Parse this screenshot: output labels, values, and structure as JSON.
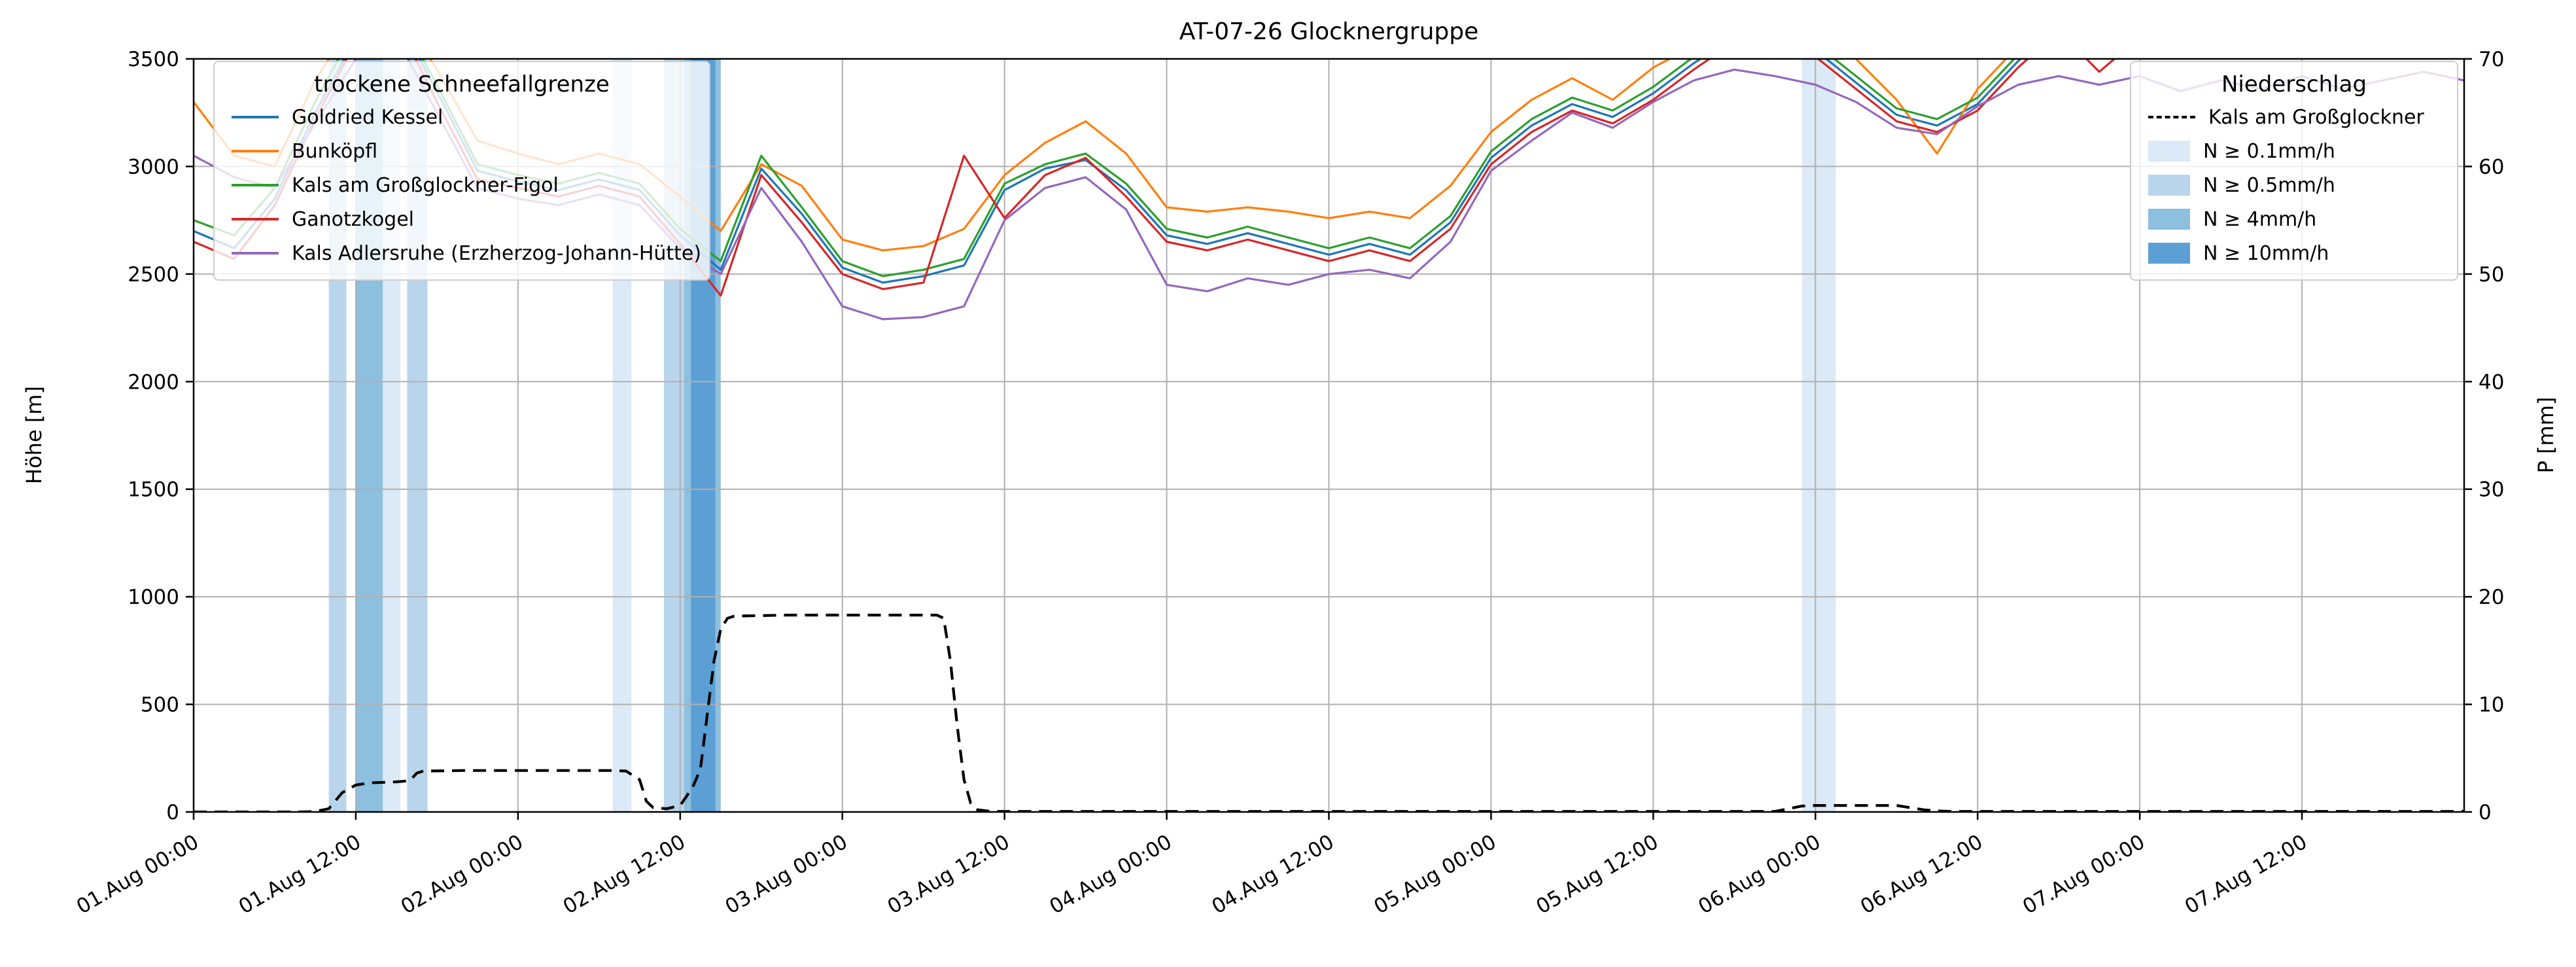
{
  "title": "AT-07-26 Glocknergruppe",
  "ylabel_left": "Höhe [m]",
  "ylabel_right": "P [mm]",
  "legend_lines": {
    "title": "trockene Schneefallgrenze",
    "entries": [
      {
        "label": "Goldried Kessel",
        "color": "#1f77b4"
      },
      {
        "label": "Bunköpfl",
        "color": "#ff7f0e"
      },
      {
        "label": "Kals am Großglockner-Figol",
        "color": "#2ca02c"
      },
      {
        "label": "Ganotzkogel",
        "color": "#d62728"
      },
      {
        "label": "Kals Adlersruhe (Erzherzog-Johann-Hütte)",
        "color": "#9467bd"
      }
    ]
  },
  "legend_precip": {
    "title": "Niederschlag",
    "line_entry": {
      "label": "Kals am Großglockner",
      "color": "#000000",
      "style": "dashed"
    },
    "band_entries": [
      {
        "label": "N ≥ 0.1mm/h",
        "color": "#dce9f6"
      },
      {
        "label": "N ≥ 0.5mm/h",
        "color": "#b9d5ec"
      },
      {
        "label": "N ≥ 4mm/h",
        "color": "#8dbfdf"
      },
      {
        "label": "N ≥ 10mm/h",
        "color": "#5b9fd4"
      }
    ]
  },
  "chart_data": {
    "type": "line",
    "title": "AT-07-26 Glocknergruppe",
    "xlabel": "",
    "ylabel_left": "Höhe [m]",
    "ylabel_right": "P [mm]",
    "x_unit": "hours since 01.Aug 00:00",
    "xlim": [
      0,
      168
    ],
    "ylim_left": [
      0,
      3500
    ],
    "ylim_right": [
      0,
      70
    ],
    "grid": true,
    "legend_positions": {
      "lines": "upper left",
      "precip": "upper right"
    },
    "yticks_left": [
      0,
      500,
      1000,
      1500,
      2000,
      2500,
      3000,
      3500
    ],
    "yticks_right": [
      0,
      10,
      20,
      30,
      40,
      50,
      60,
      70
    ],
    "xticks": [
      {
        "hour": 0,
        "label": "01.Aug 00:00"
      },
      {
        "hour": 12,
        "label": "01.Aug 12:00"
      },
      {
        "hour": 24,
        "label": "02.Aug 00:00"
      },
      {
        "hour": 36,
        "label": "02.Aug 12:00"
      },
      {
        "hour": 48,
        "label": "03.Aug 00:00"
      },
      {
        "hour": 60,
        "label": "03.Aug 12:00"
      },
      {
        "hour": 72,
        "label": "04.Aug 00:00"
      },
      {
        "hour": 84,
        "label": "04.Aug 12:00"
      },
      {
        "hour": 96,
        "label": "05.Aug 00:00"
      },
      {
        "hour": 108,
        "label": "05.Aug 12:00"
      },
      {
        "hour": 120,
        "label": "06.Aug 00:00"
      },
      {
        "hour": 132,
        "label": "06.Aug 12:00"
      },
      {
        "hour": 144,
        "label": "07.Aug 00:00"
      },
      {
        "hour": 156,
        "label": "07.Aug 12:00"
      }
    ],
    "x_hours": [
      0,
      3,
      6,
      9,
      12,
      15,
      18,
      21,
      24,
      27,
      30,
      33,
      36,
      39,
      42,
      45,
      48,
      51,
      54,
      57,
      60,
      63,
      66,
      69,
      72,
      75,
      78,
      81,
      84,
      87,
      90,
      93,
      96,
      99,
      102,
      105,
      108,
      111,
      114,
      117,
      120,
      123,
      126,
      129,
      132,
      135,
      138,
      141,
      144,
      147,
      150,
      153,
      156,
      159,
      162,
      165,
      168
    ],
    "series": [
      {
        "name": "Goldried Kessel",
        "color": "#1f77b4",
        "axis": "left",
        "values": [
          2700,
          2620,
          2850,
          3250,
          3600,
          3700,
          3350,
          2980,
          2930,
          2890,
          2940,
          2890,
          2680,
          2520,
          2990,
          2780,
          2530,
          2460,
          2490,
          2540,
          2890,
          2990,
          3030,
          2890,
          2680,
          2640,
          2690,
          2640,
          2590,
          2640,
          2590,
          2740,
          3040,
          3190,
          3290,
          3230,
          3340,
          3480,
          3600,
          3660,
          3540,
          3390,
          3240,
          3190,
          3290,
          3490,
          3650,
          3700,
          3700,
          3700,
          3700,
          3700,
          3700,
          3700,
          3700,
          3700,
          3700
        ]
      },
      {
        "name": "Bunköpfl",
        "color": "#ff7f0e",
        "axis": "left",
        "values": [
          3300,
          3050,
          3000,
          3400,
          3700,
          3750,
          3450,
          3120,
          3060,
          3010,
          3060,
          3010,
          2860,
          2700,
          3010,
          2910,
          2660,
          2610,
          2630,
          2710,
          2960,
          3110,
          3210,
          3060,
          2810,
          2790,
          2810,
          2790,
          2760,
          2790,
          2760,
          2910,
          3160,
          3310,
          3410,
          3310,
          3460,
          3560,
          3700,
          3750,
          3650,
          3500,
          3310,
          3060,
          3360,
          3560,
          3700,
          3750,
          3750,
          3750,
          3750,
          3750,
          3750,
          3750,
          3750,
          3750,
          3750
        ]
      },
      {
        "name": "Kals am Großglockner-Figol",
        "color": "#2ca02c",
        "axis": "left",
        "values": [
          2750,
          2680,
          2900,
          3300,
          3650,
          3720,
          3380,
          3010,
          2960,
          2920,
          2970,
          2920,
          2710,
          2560,
          3050,
          2810,
          2560,
          2490,
          2520,
          2570,
          2920,
          3010,
          3060,
          2920,
          2710,
          2670,
          2720,
          2670,
          2620,
          2670,
          2620,
          2770,
          3070,
          3220,
          3320,
          3260,
          3370,
          3510,
          3630,
          3690,
          3570,
          3420,
          3270,
          3220,
          3320,
          3520,
          3680,
          3720,
          3720,
          3720,
          3720,
          3720,
          3720,
          3720,
          3720,
          3720,
          3720
        ]
      },
      {
        "name": "Ganotzkogel",
        "color": "#d62728",
        "axis": "left",
        "values": [
          2650,
          2570,
          2820,
          3220,
          3580,
          3680,
          3300,
          2940,
          2900,
          2860,
          2910,
          2860,
          2640,
          2400,
          2960,
          2740,
          2500,
          2430,
          2460,
          3050,
          2760,
          2960,
          3040,
          2860,
          2650,
          2610,
          2660,
          2610,
          2560,
          2610,
          2560,
          2710,
          3010,
          3160,
          3260,
          3200,
          3310,
          3450,
          3580,
          3640,
          3510,
          3360,
          3210,
          3160,
          3260,
          3460,
          3630,
          3440,
          3600,
          3700,
          3700,
          3700,
          3700,
          3700,
          3700,
          3700,
          3700
        ]
      },
      {
        "name": "Kals Adlersruhe (Erzherzog-Johann-Hütte)",
        "color": "#9467bd",
        "axis": "left",
        "values": [
          3050,
          2950,
          2900,
          3200,
          3500,
          3600,
          3250,
          2900,
          2850,
          2820,
          2870,
          2820,
          2620,
          2500,
          2900,
          2650,
          2350,
          2290,
          2300,
          2350,
          2750,
          2900,
          2950,
          2800,
          2450,
          2420,
          2480,
          2450,
          2500,
          2520,
          2480,
          2650,
          2980,
          3120,
          3250,
          3180,
          3300,
          3400,
          3450,
          3420,
          3380,
          3300,
          3180,
          3150,
          3280,
          3380,
          3420,
          3380,
          3420,
          3350,
          3400,
          3360,
          3420,
          3360,
          3400,
          3440,
          3400
        ]
      }
    ],
    "precip_line": {
      "name": "Kals am Großglockner",
      "axis": "right",
      "color": "#000000",
      "style": "dashed",
      "x_hours": [
        0,
        8,
        9,
        10,
        11,
        12,
        13,
        15,
        16,
        16.5,
        17,
        20,
        26,
        31,
        32,
        33,
        33.5,
        34,
        35,
        36,
        36.5,
        37,
        37.5,
        38,
        38.5,
        39,
        39.5,
        40,
        44,
        50,
        55,
        55.5,
        56,
        56.5,
        57,
        57.5,
        58,
        59,
        60,
        70,
        80,
        90,
        100,
        110,
        117,
        118,
        119,
        120,
        123,
        126,
        127,
        128,
        129,
        130,
        140,
        150,
        160,
        168
      ],
      "values": [
        0,
        0,
        0.05,
        0.3,
        1.8,
        2.5,
        2.7,
        2.8,
        2.9,
        3.6,
        3.8,
        3.85,
        3.85,
        3.85,
        3.8,
        3.0,
        1.0,
        0.4,
        0.3,
        0.6,
        1.5,
        2.5,
        4,
        9,
        14,
        17,
        18,
        18.2,
        18.3,
        18.3,
        18.3,
        18.0,
        14,
        8,
        3,
        0.8,
        0.2,
        0.05,
        0.05,
        0.05,
        0.05,
        0.05,
        0.05,
        0.05,
        0.05,
        0.3,
        0.55,
        0.6,
        0.6,
        0.6,
        0.4,
        0.2,
        0.1,
        0.05,
        0.05,
        0.05,
        0.05,
        0.05
      ]
    },
    "precip_bands": [
      {
        "start_hour": 10.0,
        "end_hour": 11.3,
        "threshold": "0.5",
        "color": "#b9d5ec"
      },
      {
        "start_hour": 12.0,
        "end_hour": 14.0,
        "threshold": "4",
        "color": "#8dbfdf"
      },
      {
        "start_hour": 14.0,
        "end_hour": 15.3,
        "threshold": "0.1",
        "color": "#dce9f6"
      },
      {
        "start_hour": 15.8,
        "end_hour": 17.3,
        "threshold": "0.5",
        "color": "#b9d5ec"
      },
      {
        "start_hour": 31.0,
        "end_hour": 32.4,
        "threshold": "0.1",
        "color": "#dce9f6"
      },
      {
        "start_hour": 34.8,
        "end_hour": 36.3,
        "threshold": "0.5",
        "color": "#b9d5ec"
      },
      {
        "start_hour": 36.3,
        "end_hour": 39.0,
        "threshold": "4",
        "color": "#8dbfdf"
      },
      {
        "start_hour": 36.8,
        "end_hour": 38.6,
        "threshold": "10",
        "color": "#5b9fd4"
      },
      {
        "start_hour": 119.0,
        "end_hour": 121.5,
        "threshold": "0.1",
        "color": "#dce9f6"
      }
    ]
  }
}
